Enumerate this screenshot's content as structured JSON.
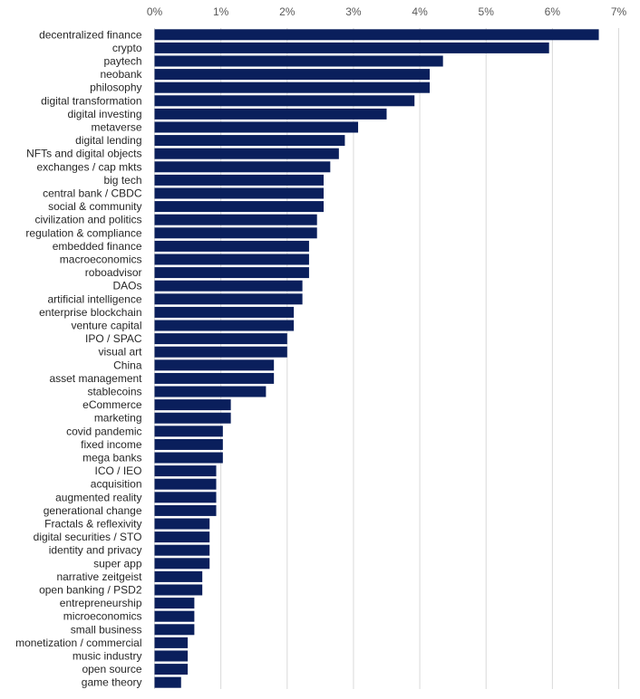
{
  "chart_data": {
    "type": "bar",
    "orientation": "horizontal",
    "xlim": [
      0,
      7
    ],
    "x_ticks": [
      "0%",
      "1%",
      "2%",
      "3%",
      "4%",
      "5%",
      "6%",
      "7%"
    ],
    "x_axis_position": "top",
    "grid": true,
    "bar_color": "#0a1f5c",
    "categories": [
      "decentralized finance",
      "crypto",
      "paytech",
      "neobank",
      "philosophy",
      "digital transformation",
      "digital investing",
      "metaverse",
      "digital lending",
      "NFTs and digital objects",
      "exchanges / cap mkts",
      "big tech",
      "central bank / CBDC",
      "social & community",
      "civilization and politics",
      "regulation & compliance",
      "embedded finance",
      "macroeconomics",
      "roboadvisor",
      "DAOs",
      "artificial intelligence",
      "enterprise blockchain",
      "venture capital",
      "IPO / SPAC",
      "visual art",
      "China",
      "asset management",
      "stablecoins",
      "eCommerce",
      "marketing",
      "covid pandemic",
      "fixed income",
      "mega banks",
      "ICO / IEO",
      "acquisition",
      "augmented reality",
      "generational change",
      "Fractals & reflexivity",
      "digital securities / STO",
      "identity and privacy",
      "super app",
      "narrative zeitgeist",
      "open banking / PSD2",
      "entrepreneurship",
      "microeconomics",
      "small business",
      "monetization / commercial",
      "music industry",
      "open source",
      "game theory"
    ],
    "values": [
      6.7,
      5.95,
      4.35,
      4.15,
      4.15,
      3.92,
      3.5,
      3.07,
      2.87,
      2.78,
      2.65,
      2.55,
      2.55,
      2.55,
      2.45,
      2.45,
      2.33,
      2.33,
      2.33,
      2.23,
      2.23,
      2.1,
      2.1,
      2.0,
      2.0,
      1.8,
      1.8,
      1.68,
      1.15,
      1.15,
      1.03,
      1.03,
      1.03,
      0.93,
      0.93,
      0.93,
      0.93,
      0.83,
      0.83,
      0.83,
      0.83,
      0.72,
      0.72,
      0.6,
      0.6,
      0.6,
      0.5,
      0.5,
      0.5,
      0.4
    ]
  }
}
